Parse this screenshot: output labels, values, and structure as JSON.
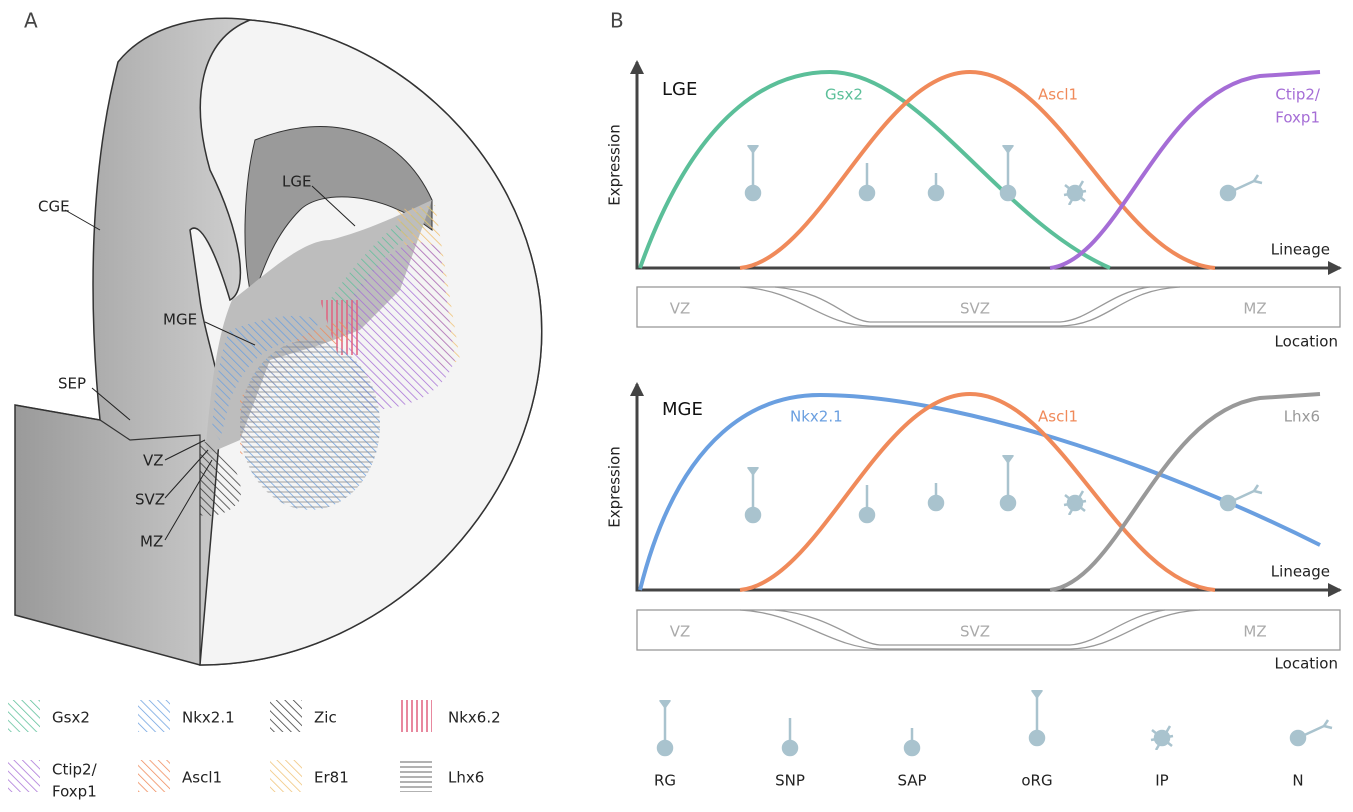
{
  "panel_a": {
    "label": "A",
    "regions": [
      "CGE",
      "LGE",
      "MGE",
      "SEP",
      "VZ",
      "SVZ",
      "MZ"
    ]
  },
  "legend": [
    {
      "label": [
        "Gsx2"
      ]
    },
    {
      "label": [
        "Nkx2.1"
      ]
    },
    {
      "label": [
        "Zic"
      ]
    },
    {
      "label": [
        "Nkx6.2"
      ]
    },
    {
      "label": [
        "Ctip2/",
        "Foxp1"
      ]
    },
    {
      "label": [
        "Ascl1"
      ]
    },
    {
      "label": [
        "Er81"
      ]
    },
    {
      "label": [
        "Lhx6"
      ]
    }
  ],
  "panel_b": {
    "label": "B",
    "plots": [
      {
        "title": "LGE",
        "y_label": "Expression",
        "x_label": "Lineage",
        "curves": [
          {
            "label": [
              "Gsx2"
            ]
          },
          {
            "label": [
              "Ascl1"
            ]
          },
          {
            "label": [
              "Ctip2/",
              "Foxp1"
            ]
          }
        ],
        "zones": [
          "VZ",
          "SVZ",
          "MZ"
        ],
        "zone_label": "Location"
      },
      {
        "title": "MGE",
        "y_label": "Expression",
        "x_label": "Lineage",
        "curves": [
          {
            "label": [
              "Nkx2.1"
            ]
          },
          {
            "label": [
              "Ascl1"
            ]
          },
          {
            "label": [
              "Lhx6"
            ]
          }
        ],
        "zones": [
          "VZ",
          "SVZ",
          "MZ"
        ],
        "zone_label": "Location"
      }
    ],
    "cell_types": [
      "RG",
      "SNP",
      "SAP",
      "oRG",
      "IP",
      "N"
    ]
  }
}
